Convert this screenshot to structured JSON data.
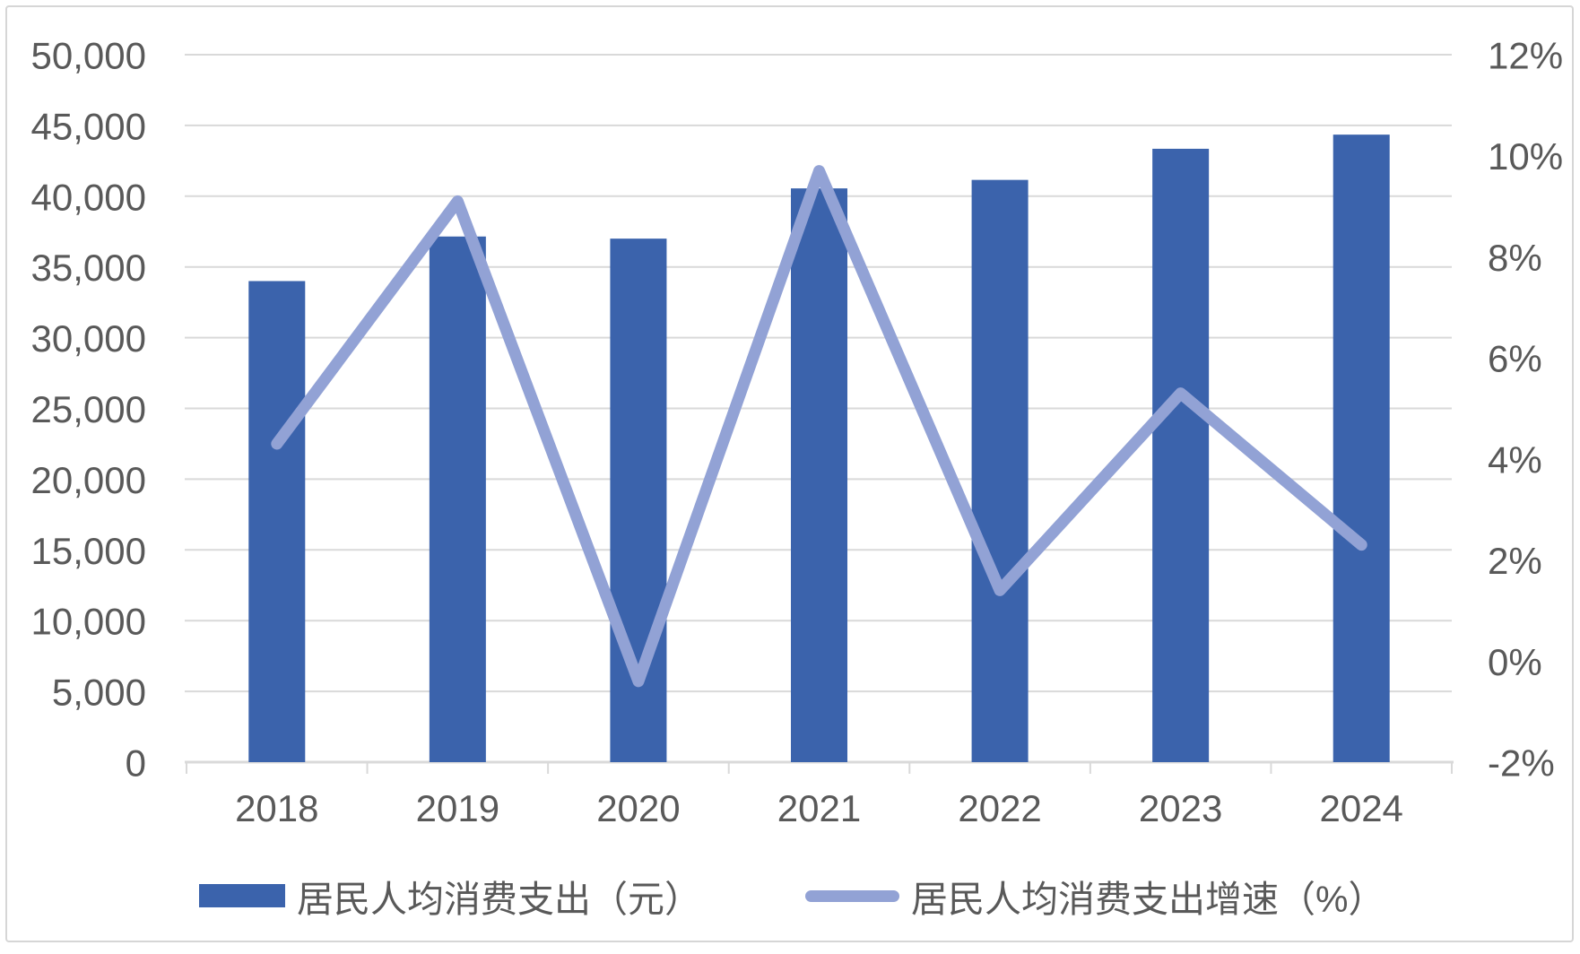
{
  "chart_data": {
    "type": "combo-bar-line",
    "title": "",
    "categories": [
      "2018",
      "2019",
      "2020",
      "2021",
      "2022",
      "2023",
      "2024"
    ],
    "series": [
      {
        "name": "居民人均消费支出（元）",
        "type": "bar",
        "axis": "left",
        "color": "#3b63ac",
        "values": [
          34000,
          37150,
          37000,
          40550,
          41150,
          43350,
          44350
        ]
      },
      {
        "name": "居民人均消费支出增速（%）",
        "type": "line",
        "axis": "right",
        "color": "#92a2d5",
        "values": [
          4.3,
          9.1,
          -0.4,
          9.7,
          1.4,
          5.3,
          2.3
        ]
      }
    ],
    "left_axis": {
      "min": 0,
      "max": 50000,
      "step": 5000,
      "ticks": [
        {
          "value": 50000,
          "label": "50,000"
        },
        {
          "value": 45000,
          "label": "45,000"
        },
        {
          "value": 40000,
          "label": "40,000"
        },
        {
          "value": 35000,
          "label": "35,000"
        },
        {
          "value": 30000,
          "label": "30,000"
        },
        {
          "value": 25000,
          "label": "25,000"
        },
        {
          "value": 20000,
          "label": "20,000"
        },
        {
          "value": 15000,
          "label": "15,000"
        },
        {
          "value": 10000,
          "label": "10,000"
        },
        {
          "value": 5000,
          "label": "5,000"
        },
        {
          "value": 0,
          "label": "0"
        }
      ]
    },
    "right_axis": {
      "min": -2,
      "max": 12,
      "step": 2,
      "ticks": [
        {
          "value": 12,
          "label": "12%"
        },
        {
          "value": 10,
          "label": "10%"
        },
        {
          "value": 8,
          "label": "8%"
        },
        {
          "value": 6,
          "label": "6%"
        },
        {
          "value": 4,
          "label": "4%"
        },
        {
          "value": 2,
          "label": "2%"
        },
        {
          "value": 0,
          "label": "0%"
        },
        {
          "value": -2,
          "label": "-2%"
        }
      ]
    },
    "grid": true,
    "legend_position": "bottom"
  },
  "colors": {
    "gridline": "#d9d9d9",
    "axis_line": "#d9d9d9",
    "tick_mark": "#d9d9d9",
    "label_text": "#595959",
    "background": "#ffffff",
    "frame_border": "#d6d6d6"
  }
}
